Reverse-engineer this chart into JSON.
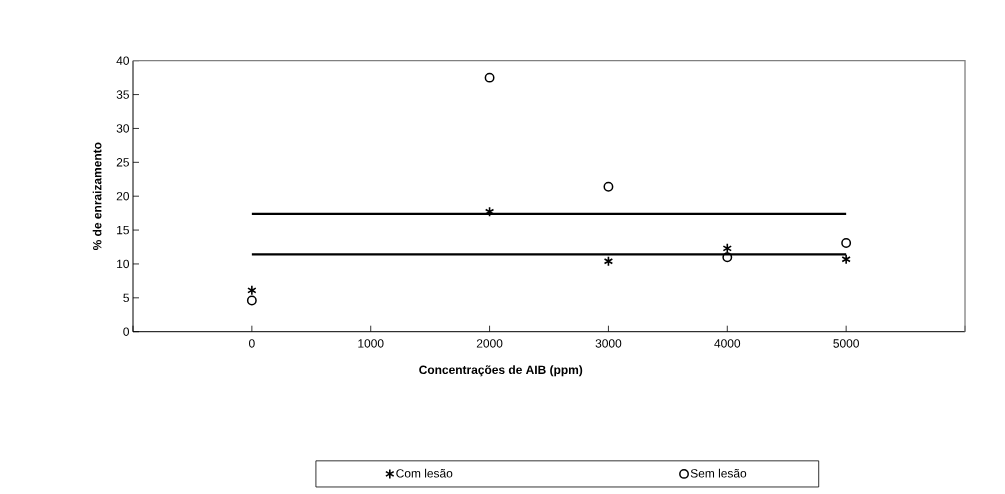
{
  "chart_data": {
    "type": "scatter",
    "xlabel": "Concentrações de AIB (ppm)",
    "ylabel": "% de enraizamento",
    "xlim": [
      -1000,
      6000
    ],
    "xticks": [
      {
        "value": -1000,
        "label": null
      },
      0,
      1000,
      2000,
      3000,
      4000,
      5000,
      {
        "value": 6000,
        "label": null
      }
    ],
    "ylim": [
      0,
      40
    ],
    "yticks": [
      0,
      5,
      10,
      15,
      20,
      25,
      30,
      35,
      40
    ],
    "legend": "bottom",
    "series": [
      {
        "name": "Com lesão",
        "color": "#000000",
        "marker": "cross",
        "x": [
          0,
          2000,
          3000,
          4000,
          5000
        ],
        "values": [
          6.1,
          17.7,
          10.4,
          12.3,
          10.7
        ]
      },
      {
        "name": "Sem lesão",
        "color": "#000000",
        "marker": "circle",
        "x": [
          0,
          2000,
          3000,
          4000,
          5000
        ],
        "values": [
          4.6,
          37.5,
          21.4,
          11.0,
          13.1
        ]
      },
      {
        "type": "line",
        "color": "#000000",
        "marker": "none",
        "x": [
          0,
          5000
        ],
        "values": [
          17.4,
          17.4
        ]
      },
      {
        "type": "line",
        "color": "#000000",
        "marker": "none",
        "x": [
          0,
          5000
        ],
        "values": [
          11.4,
          11.4
        ]
      }
    ]
  }
}
